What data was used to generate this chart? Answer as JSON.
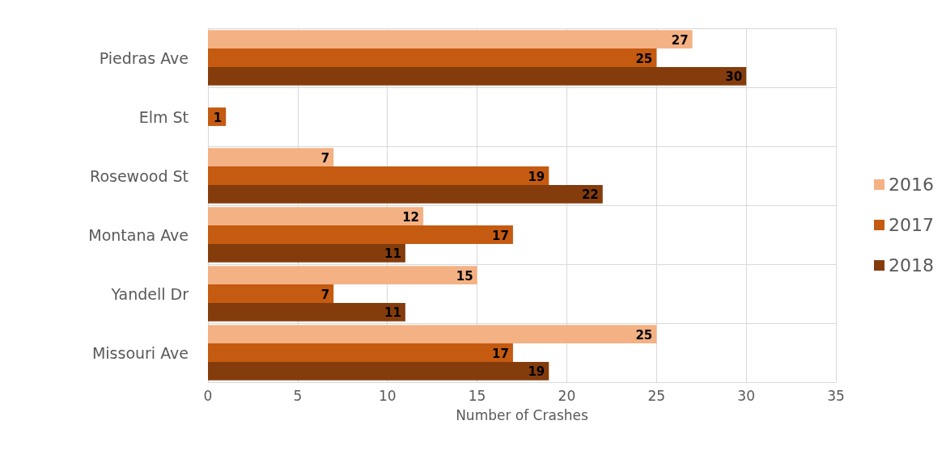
{
  "chart_data": {
    "type": "bar",
    "orientation": "horizontal",
    "xlabel": "Number of Crashes",
    "categories": [
      "Piedras Ave",
      "Elm St",
      "Rosewood St",
      "Montana Ave",
      "Yandell Dr",
      "Missouri Ave"
    ],
    "series": [
      {
        "name": "2016",
        "color": "#f4b183",
        "values": [
          27,
          null,
          7,
          12,
          15,
          25
        ]
      },
      {
        "name": "2017",
        "color": "#c55a11",
        "values": [
          25,
          1,
          19,
          17,
          7,
          17
        ]
      },
      {
        "name": "2018",
        "color": "#843c0c",
        "values": [
          30,
          null,
          22,
          11,
          11,
          19
        ]
      }
    ],
    "xlim": [
      0,
      35
    ],
    "xticks": [
      0,
      5,
      10,
      15,
      20,
      25,
      30,
      35
    ],
    "grid": true,
    "legend": "right",
    "data_labels": true
  }
}
